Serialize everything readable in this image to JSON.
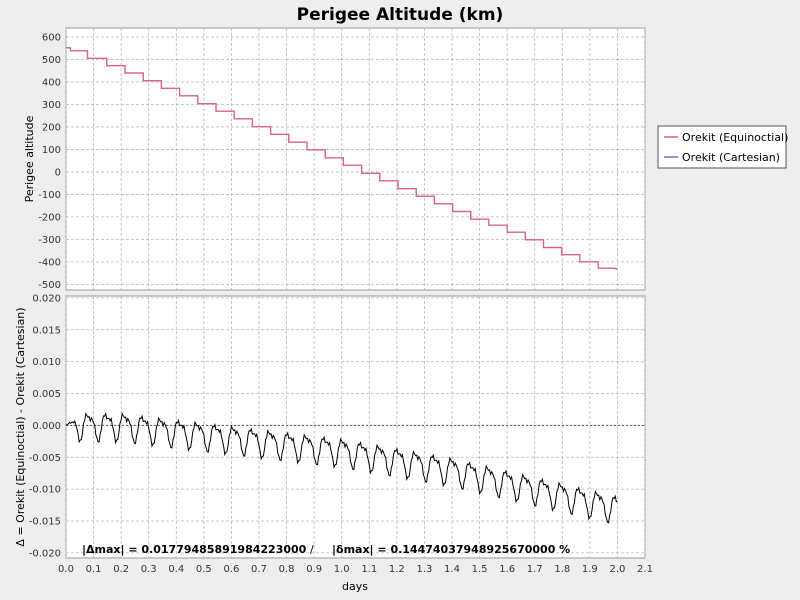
{
  "chart_data": [
    {
      "type": "line",
      "title": "Perigee Altitude (km)",
      "xlabel": "days",
      "ylabel": "Perigee altitude",
      "xlim": [
        0,
        2.1
      ],
      "ylim": [
        -525,
        640
      ],
      "x_ticks": [
        "0.0",
        "0.1",
        "0.2",
        "0.3",
        "0.4",
        "0.5",
        "0.6",
        "0.7",
        "0.8",
        "0.9",
        "1.0",
        "1.1",
        "1.2",
        "1.3",
        "1.4",
        "1.5",
        "1.6",
        "1.7",
        "1.8",
        "1.9",
        "2.0",
        "2.1"
      ],
      "y_ticks": [
        600,
        500,
        400,
        300,
        200,
        100,
        0,
        -100,
        -200,
        -300,
        -400,
        -500
      ],
      "grid": true,
      "legend_placement": "right",
      "series": [
        {
          "name": "Orekit (Equinoctial)",
          "color": "#e0607e",
          "x": [
            0.0,
            0.016,
            0.016,
            0.078,
            0.078,
            0.148,
            0.148,
            0.214,
            0.214,
            0.28,
            0.28,
            0.346,
            0.346,
            0.412,
            0.412,
            0.478,
            0.478,
            0.544,
            0.544,
            0.61,
            0.61,
            0.676,
            0.676,
            0.742,
            0.742,
            0.808,
            0.808,
            0.874,
            0.874,
            0.94,
            0.94,
            1.006,
            1.006,
            1.072,
            1.072,
            1.138,
            1.138,
            1.204,
            1.204,
            1.27,
            1.27,
            1.336,
            1.336,
            1.402,
            1.402,
            1.468,
            1.468,
            1.534,
            1.534,
            1.6,
            1.6,
            1.666,
            1.666,
            1.732,
            1.732,
            1.798,
            1.798,
            1.864,
            1.864,
            1.93,
            1.93,
            1.99,
            1.99,
            2.0
          ],
          "y": [
            552,
            552,
            538,
            538,
            505,
            505,
            473,
            473,
            440,
            440,
            406,
            406,
            372,
            372,
            338,
            338,
            304,
            304,
            270,
            270,
            236,
            236,
            201,
            201,
            167,
            167,
            132,
            132,
            98,
            98,
            63,
            63,
            29,
            29,
            -6,
            -6,
            -40,
            -40,
            -74,
            -74,
            -108,
            -108,
            -142,
            -142,
            -176,
            -176,
            -210,
            -210,
            -237,
            -237,
            -268,
            -268,
            -302,
            -302,
            -336,
            -336,
            -368,
            -368,
            -400,
            -400,
            -428,
            -428,
            -430,
            -430
          ]
        },
        {
          "name": "Orekit (Cartesian)",
          "color": "#8e63b8"
        }
      ]
    },
    {
      "type": "line",
      "xlabel": "days",
      "ylabel": "Δ = Orekit (Equinoctial) - Orekit (Cartesian)",
      "xlim": [
        0,
        2.1
      ],
      "ylim": [
        -0.0208,
        0.0203
      ],
      "x_ticks": [
        "0.0",
        "0.1",
        "0.2",
        "0.3",
        "0.4",
        "0.5",
        "0.6",
        "0.7",
        "0.8",
        "0.9",
        "1.0",
        "1.1",
        "1.2",
        "1.3",
        "1.4",
        "1.5",
        "1.6",
        "1.7",
        "1.8",
        "1.9",
        "2.0",
        "2.1"
      ],
      "y_ticks": [
        "0.020",
        "0.015",
        "0.010",
        "0.005",
        "0.000",
        "-0.005",
        "-0.010",
        "-0.015",
        "-0.020"
      ],
      "grid": true,
      "zero_line": true,
      "series": [
        {
          "color": "#000000",
          "x_range": [
            0.0,
            2.0
          ],
          "trend_points": [
            [
              0.0,
              0.0
            ],
            [
              0.2,
              0.0
            ],
            [
              0.6,
              -0.002
            ],
            [
              1.0,
              -0.004
            ],
            [
              1.4,
              -0.007
            ],
            [
              1.8,
              -0.011
            ],
            [
              2.0,
              -0.013
            ]
          ],
          "oscillation_period": 0.066,
          "oscillation_amplitude": 0.0025
        }
      ],
      "annotation_delta": "|Δmax| = 0.01779485891984223000",
      "annotation_separator": "/",
      "annotation_delta_rel": "|δmax| = 0.14474037948925670000 %"
    }
  ]
}
